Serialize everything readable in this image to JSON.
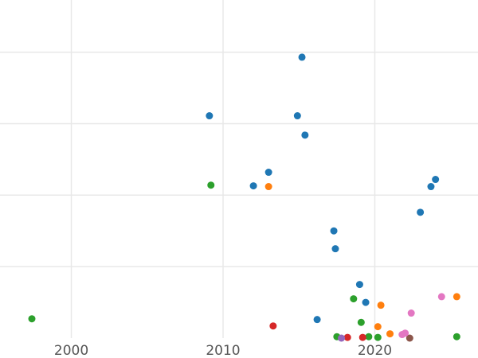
{
  "chart_data": {
    "type": "scatter",
    "title": "",
    "xlabel": "",
    "ylabel": "",
    "xlim": [
      1995.3,
      2026.8
    ],
    "ylim": [
      0,
      473
    ],
    "x_ticks": [
      2000,
      2010,
      2020
    ],
    "x_tick_labels": [
      "2000",
      "2010",
      "2020"
    ],
    "y_grid": [
      100,
      200,
      300,
      400
    ],
    "grid": true,
    "legend": "none",
    "series": [
      {
        "name": "blue",
        "color": "#1f77b4",
        "points": [
          [
            2015.2,
            393
          ],
          [
            2009.1,
            311
          ],
          [
            2014.9,
            311
          ],
          [
            2015.4,
            284
          ],
          [
            2013.0,
            232
          ],
          [
            2012.0,
            213
          ],
          [
            2024.0,
            222
          ],
          [
            2023.7,
            212
          ],
          [
            2023.0,
            176
          ],
          [
            2017.3,
            150
          ],
          [
            2017.4,
            125
          ],
          [
            2019.0,
            75
          ],
          [
            2019.4,
            50
          ],
          [
            2016.2,
            26
          ]
        ]
      },
      {
        "name": "orange",
        "color": "#ff7f0e",
        "points": [
          [
            2013.0,
            212
          ],
          [
            2025.4,
            58
          ],
          [
            2020.4,
            46
          ],
          [
            2020.2,
            16
          ],
          [
            2021.0,
            6
          ]
        ]
      },
      {
        "name": "green",
        "color": "#2ca02c",
        "points": [
          [
            2009.2,
            214
          ],
          [
            2018.6,
            55
          ],
          [
            1997.4,
            27
          ],
          [
            2019.1,
            22
          ],
          [
            2017.5,
            2
          ],
          [
            2019.6,
            2
          ],
          [
            2020.2,
            1
          ],
          [
            2025.4,
            2
          ]
        ]
      },
      {
        "name": "red",
        "color": "#d62728",
        "points": [
          [
            2013.3,
            17
          ],
          [
            2018.2,
            1
          ],
          [
            2019.2,
            1
          ]
        ]
      },
      {
        "name": "purple",
        "color": "#9467bd",
        "points": [
          [
            2017.8,
            0
          ]
        ]
      },
      {
        "name": "brown",
        "color": "#8c564b",
        "points": [
          [
            2022.3,
            0
          ]
        ]
      },
      {
        "name": "pink",
        "color": "#e377c2",
        "points": [
          [
            2024.4,
            58
          ],
          [
            2022.4,
            35
          ],
          [
            2022.0,
            7
          ],
          [
            2021.8,
            5
          ]
        ]
      }
    ]
  }
}
